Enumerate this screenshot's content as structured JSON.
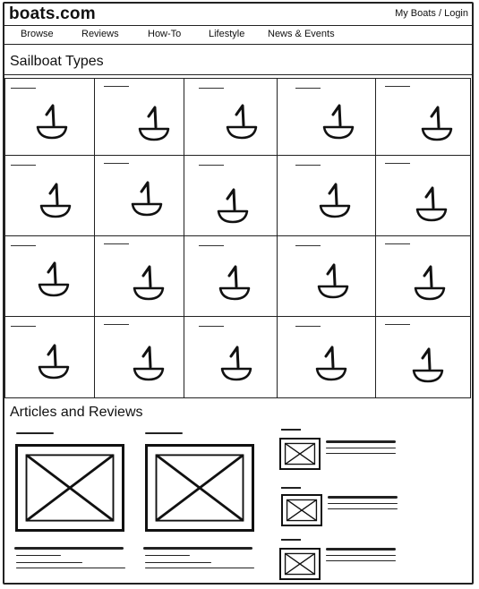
{
  "header": {
    "logo": "boats.com",
    "account_link": "My Boats / Login"
  },
  "nav": {
    "items": [
      "Browse",
      "Reviews",
      "How-To",
      "Lifestyle",
      "News & Events"
    ]
  },
  "sections": {
    "types_title": "Sailboat Types",
    "articles_title": "Articles and Reviews"
  },
  "sailboat_grid": {
    "rows": 4,
    "columns": 5,
    "tile_icon": "sailboat-icon"
  },
  "articles": {
    "featured_count": 2,
    "list_count": 3,
    "image_icon": "image-placeholder-icon"
  }
}
